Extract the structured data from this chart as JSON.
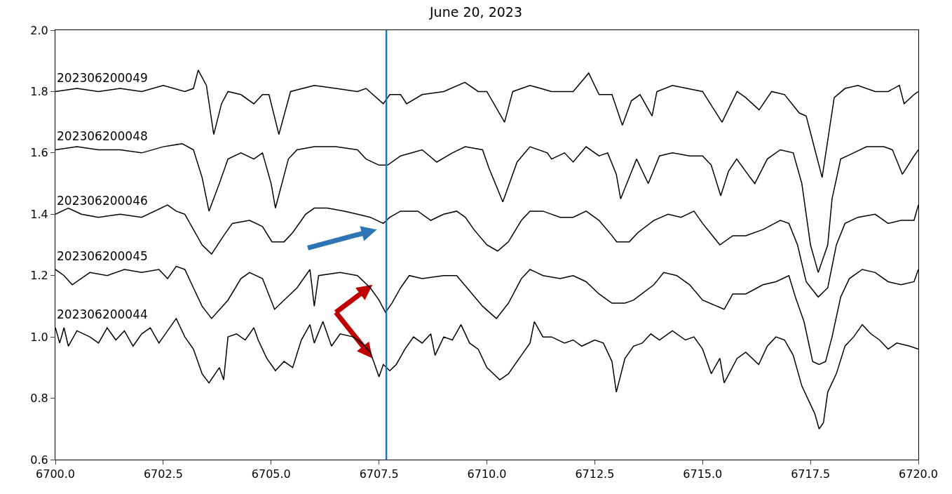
{
  "chart_data": {
    "type": "line",
    "title": "June 20, 2023",
    "xlim": [
      6700,
      6720
    ],
    "ylim": [
      0.6,
      2.0
    ],
    "xticks": [
      {
        "value": 6700,
        "label": "6700.0"
      },
      {
        "value": 6702.5,
        "label": "6702.5"
      },
      {
        "value": 6705,
        "label": "6705.0"
      },
      {
        "value": 6707.5,
        "label": "6707.5"
      },
      {
        "value": 6710,
        "label": "6710.0"
      },
      {
        "value": 6712.5,
        "label": "6712.5"
      },
      {
        "value": 6715,
        "label": "6715.0"
      },
      {
        "value": 6717.5,
        "label": "6717.5"
      },
      {
        "value": 6720,
        "label": "6720.0"
      }
    ],
    "yticks": [
      {
        "value": 0.6,
        "label": "0.6"
      },
      {
        "value": 0.8,
        "label": "0.8"
      },
      {
        "value": 1.0,
        "label": "1.0"
      },
      {
        "value": 1.2,
        "label": "1.2"
      },
      {
        "value": 1.4,
        "label": "1.4"
      },
      {
        "value": 1.6,
        "label": "1.6"
      },
      {
        "value": 1.8,
        "label": "1.8"
      },
      {
        "value": 2.0,
        "label": "2.0"
      }
    ],
    "legend": false,
    "marker": "none",
    "line_style": "solid",
    "ref_lines": [
      {
        "axis": "x",
        "value": 6707.67,
        "color": "#1f77b4",
        "line_style": "solid"
      }
    ],
    "series": [
      {
        "name": "202306200049",
        "color": "#000000",
        "x": [
          6700,
          6700.5,
          6701,
          6701.5,
          6702,
          6702.5,
          6703,
          6703.2,
          6703.31,
          6703.5,
          6703.67,
          6703.85,
          6704,
          6704.3,
          6704.6,
          6704.8,
          6704.95,
          6705.18,
          6705.45,
          6706,
          6706.5,
          6707,
          6707.2,
          6707.6,
          6707.75,
          6708,
          6708.14,
          6708.5,
          6709,
          6709.49,
          6709.8,
          6710,
          6710.41,
          6710.6,
          6711,
          6711.5,
          6712,
          6712.36,
          6712.6,
          6712.9,
          6713.14,
          6713.35,
          6713.55,
          6713.83,
          6713.94,
          6714.3,
          6715,
          6715.45,
          6715.8,
          6716,
          6716.31,
          6716.6,
          6716.9,
          6717.24,
          6717.4,
          6717.77,
          6718.05,
          6718.3,
          6718.6,
          6719,
          6719.3,
          6719.56,
          6719.67,
          6719.9,
          6720
        ],
        "values": [
          1.8,
          1.81,
          1.8,
          1.81,
          1.8,
          1.82,
          1.8,
          1.81,
          1.87,
          1.82,
          1.66,
          1.76,
          1.8,
          1.79,
          1.76,
          1.79,
          1.79,
          1.66,
          1.8,
          1.82,
          1.81,
          1.8,
          1.81,
          1.76,
          1.79,
          1.79,
          1.76,
          1.79,
          1.8,
          1.83,
          1.8,
          1.8,
          1.7,
          1.8,
          1.82,
          1.8,
          1.8,
          1.86,
          1.79,
          1.79,
          1.69,
          1.77,
          1.79,
          1.72,
          1.8,
          1.82,
          1.8,
          1.7,
          1.8,
          1.78,
          1.74,
          1.8,
          1.79,
          1.73,
          1.72,
          1.52,
          1.78,
          1.81,
          1.82,
          1.8,
          1.8,
          1.82,
          1.76,
          1.79,
          1.8
        ]
      },
      {
        "name": "202306200048",
        "color": "#000000",
        "x": [
          6700,
          6700.5,
          6701,
          6701.5,
          6702,
          6702.5,
          6702.94,
          6703.2,
          6703.4,
          6703.56,
          6703.8,
          6704,
          6704.3,
          6704.6,
          6704.8,
          6705,
          6705.1,
          6705.4,
          6705.6,
          6706,
          6706.5,
          6707,
          6707.2,
          6707.5,
          6707.7,
          6708,
          6708.5,
          6708.84,
          6709.2,
          6709.5,
          6709.9,
          6710.05,
          6710.37,
          6710.7,
          6711,
          6711.4,
          6711.5,
          6711.8,
          6712,
          6712.3,
          6712.6,
          6712.8,
          6713,
          6713.1,
          6713.47,
          6713.74,
          6714,
          6714.3,
          6714.7,
          6715,
          6715.2,
          6715.42,
          6715.6,
          6715.79,
          6716.1,
          6716.21,
          6716.5,
          6716.8,
          6717.1,
          6717.3,
          6717.5,
          6717.68,
          6717.9,
          6718,
          6718.2,
          6718.5,
          6718.8,
          6719.2,
          6719.4,
          6719.63,
          6719.9,
          6720
        ],
        "values": [
          1.61,
          1.62,
          1.61,
          1.61,
          1.6,
          1.62,
          1.63,
          1.61,
          1.52,
          1.41,
          1.5,
          1.58,
          1.6,
          1.58,
          1.6,
          1.5,
          1.42,
          1.58,
          1.61,
          1.62,
          1.62,
          1.61,
          1.58,
          1.56,
          1.56,
          1.59,
          1.61,
          1.57,
          1.6,
          1.62,
          1.61,
          1.55,
          1.44,
          1.57,
          1.62,
          1.6,
          1.58,
          1.6,
          1.57,
          1.62,
          1.59,
          1.6,
          1.53,
          1.45,
          1.58,
          1.5,
          1.59,
          1.6,
          1.59,
          1.59,
          1.56,
          1.46,
          1.54,
          1.58,
          1.52,
          1.5,
          1.58,
          1.61,
          1.6,
          1.5,
          1.3,
          1.21,
          1.3,
          1.45,
          1.58,
          1.6,
          1.62,
          1.62,
          1.61,
          1.53,
          1.59,
          1.61
        ]
      },
      {
        "name": "202306200046",
        "color": "#000000",
        "x": [
          6700,
          6700.3,
          6700.6,
          6701,
          6701.5,
          6702,
          6702.6,
          6702.8,
          6703,
          6703.2,
          6703.4,
          6703.62,
          6703.9,
          6704.1,
          6704.5,
          6704.8,
          6705.02,
          6705.3,
          6705.5,
          6705.8,
          6706,
          6706.3,
          6706.7,
          6707,
          6707.3,
          6707.6,
          6707.75,
          6708,
          6708.4,
          6708.7,
          6709,
          6709.3,
          6709.5,
          6709.7,
          6710,
          6710.25,
          6710.5,
          6710.8,
          6711,
          6711.3,
          6711.7,
          6712,
          6712.3,
          6712.6,
          6712.9,
          6713.01,
          6713.3,
          6713.5,
          6713.87,
          6714.2,
          6714.5,
          6714.8,
          6715,
          6715.4,
          6715.7,
          6716,
          6716.4,
          6716.8,
          6717,
          6717.2,
          6717.4,
          6717.68,
          6717.9,
          6718.1,
          6718.3,
          6718.6,
          6719,
          6719.3,
          6719.6,
          6719.9,
          6720
        ],
        "values": [
          1.4,
          1.42,
          1.4,
          1.39,
          1.4,
          1.39,
          1.43,
          1.41,
          1.4,
          1.35,
          1.3,
          1.27,
          1.33,
          1.37,
          1.38,
          1.36,
          1.31,
          1.31,
          1.34,
          1.4,
          1.42,
          1.42,
          1.41,
          1.4,
          1.39,
          1.37,
          1.39,
          1.41,
          1.41,
          1.38,
          1.4,
          1.41,
          1.39,
          1.35,
          1.3,
          1.28,
          1.31,
          1.38,
          1.41,
          1.41,
          1.39,
          1.39,
          1.41,
          1.38,
          1.33,
          1.31,
          1.31,
          1.34,
          1.38,
          1.4,
          1.39,
          1.41,
          1.37,
          1.3,
          1.33,
          1.33,
          1.35,
          1.38,
          1.37,
          1.3,
          1.18,
          1.13,
          1.16,
          1.3,
          1.37,
          1.39,
          1.4,
          1.37,
          1.38,
          1.38,
          1.43
        ]
      },
      {
        "name": "202306200045",
        "color": "#000000",
        "x": [
          6700,
          6700.2,
          6700.39,
          6700.8,
          6701.2,
          6701.6,
          6702,
          6702.4,
          6702.6,
          6702.8,
          6703,
          6703.2,
          6703.4,
          6703.62,
          6704,
          6704.3,
          6704.5,
          6704.8,
          6705.08,
          6705.3,
          6705.6,
          6705.9,
          6706,
          6706.1,
          6706.6,
          6707,
          6707.3,
          6707.5,
          6707.65,
          6707.8,
          6708,
          6708.2,
          6708.5,
          6709,
          6709.3,
          6709.6,
          6709.9,
          6710.22,
          6710.5,
          6710.8,
          6711,
          6711.3,
          6711.7,
          6712,
          6712.3,
          6712.6,
          6712.9,
          6713.2,
          6713.4,
          6713.87,
          6714.1,
          6714.4,
          6714.7,
          6715,
          6715.5,
          6715.7,
          6716,
          6716.4,
          6716.7,
          6717,
          6717.15,
          6717.35,
          6717.55,
          6717.7,
          6717.85,
          6718,
          6718.2,
          6718.4,
          6718.7,
          6719,
          6719.3,
          6719.6,
          6719.9,
          6720
        ],
        "values": [
          1.22,
          1.2,
          1.17,
          1.21,
          1.2,
          1.22,
          1.21,
          1.22,
          1.19,
          1.23,
          1.22,
          1.16,
          1.1,
          1.06,
          1.12,
          1.19,
          1.21,
          1.19,
          1.09,
          1.12,
          1.16,
          1.22,
          1.1,
          1.2,
          1.21,
          1.2,
          1.16,
          1.12,
          1.08,
          1.11,
          1.16,
          1.2,
          1.19,
          1.2,
          1.2,
          1.15,
          1.1,
          1.06,
          1.11,
          1.19,
          1.22,
          1.2,
          1.19,
          1.2,
          1.18,
          1.14,
          1.11,
          1.11,
          1.12,
          1.17,
          1.21,
          1.2,
          1.17,
          1.12,
          1.09,
          1.14,
          1.14,
          1.17,
          1.18,
          1.2,
          1.13,
          1.05,
          0.92,
          0.91,
          0.92,
          1.0,
          1.13,
          1.19,
          1.22,
          1.21,
          1.18,
          1.17,
          1.18,
          1.22
        ]
      },
      {
        "name": "202306200044",
        "color": "#000000",
        "x": [
          6700,
          6700.1,
          6700.2,
          6700.3,
          6700.5,
          6700.8,
          6701,
          6701.2,
          6701.4,
          6701.6,
          6701.8,
          6702,
          6702.2,
          6702.4,
          6702.6,
          6702.8,
          6703,
          6703.2,
          6703.4,
          6703.56,
          6703.8,
          6703.9,
          6704,
          6704.2,
          6704.4,
          6704.6,
          6704.7,
          6704.9,
          6705.1,
          6705.3,
          6705.5,
          6705.7,
          6705.9,
          6706,
          6706.2,
          6706.4,
          6706.6,
          6706.9,
          6707.1,
          6707.3,
          6707.5,
          6707.6,
          6707.75,
          6707.9,
          6708.1,
          6708.3,
          6708.5,
          6708.7,
          6708.8,
          6709,
          6709.2,
          6709.4,
          6709.6,
          6709.8,
          6710,
          6710.3,
          6710.5,
          6710.8,
          6711,
          6711.1,
          6711.3,
          6711.5,
          6711.8,
          6712,
          6712.2,
          6712.5,
          6712.7,
          6712.9,
          6713,
          6713.2,
          6713.4,
          6713.6,
          6713.8,
          6714,
          6714.3,
          6714.6,
          6714.8,
          6715,
          6715.2,
          6715.4,
          6715.5,
          6715.8,
          6716,
          6716.3,
          6716.5,
          6716.7,
          6716.9,
          6717.1,
          6717.3,
          6717.5,
          6717.6,
          6717.7,
          6717.8,
          6717.9,
          6718.1,
          6718.3,
          6718.5,
          6718.7,
          6718.9,
          6719.1,
          6719.3,
          6719.5,
          6719.8,
          6720
        ],
        "values": [
          1.03,
          0.98,
          1.03,
          0.97,
          1.02,
          1.0,
          0.98,
          1.03,
          0.99,
          1.02,
          0.97,
          1.01,
          1.03,
          0.98,
          1.02,
          1.06,
          1.0,
          0.96,
          0.88,
          0.85,
          0.9,
          0.86,
          1.0,
          1.01,
          0.99,
          1.03,
          0.99,
          0.93,
          0.89,
          0.92,
          0.9,
          0.99,
          1.04,
          0.98,
          1.05,
          0.97,
          1.01,
          1.0,
          0.98,
          0.95,
          0.87,
          0.91,
          0.89,
          0.91,
          0.96,
          1.0,
          0.98,
          1.01,
          0.94,
          1.0,
          0.99,
          1.04,
          0.98,
          0.96,
          0.9,
          0.86,
          0.88,
          0.94,
          0.98,
          1.05,
          1.0,
          1.0,
          0.98,
          0.99,
          0.97,
          0.99,
          0.98,
          0.92,
          0.82,
          0.93,
          0.97,
          0.98,
          1.01,
          0.99,
          1.02,
          0.99,
          1.0,
          0.96,
          0.88,
          0.93,
          0.85,
          0.93,
          0.95,
          0.91,
          0.97,
          1.0,
          0.99,
          0.94,
          0.84,
          0.78,
          0.75,
          0.7,
          0.72,
          0.82,
          0.88,
          0.97,
          1.0,
          1.04,
          1.01,
          0.99,
          0.96,
          0.98,
          0.97,
          0.96
        ]
      }
    ]
  }
}
